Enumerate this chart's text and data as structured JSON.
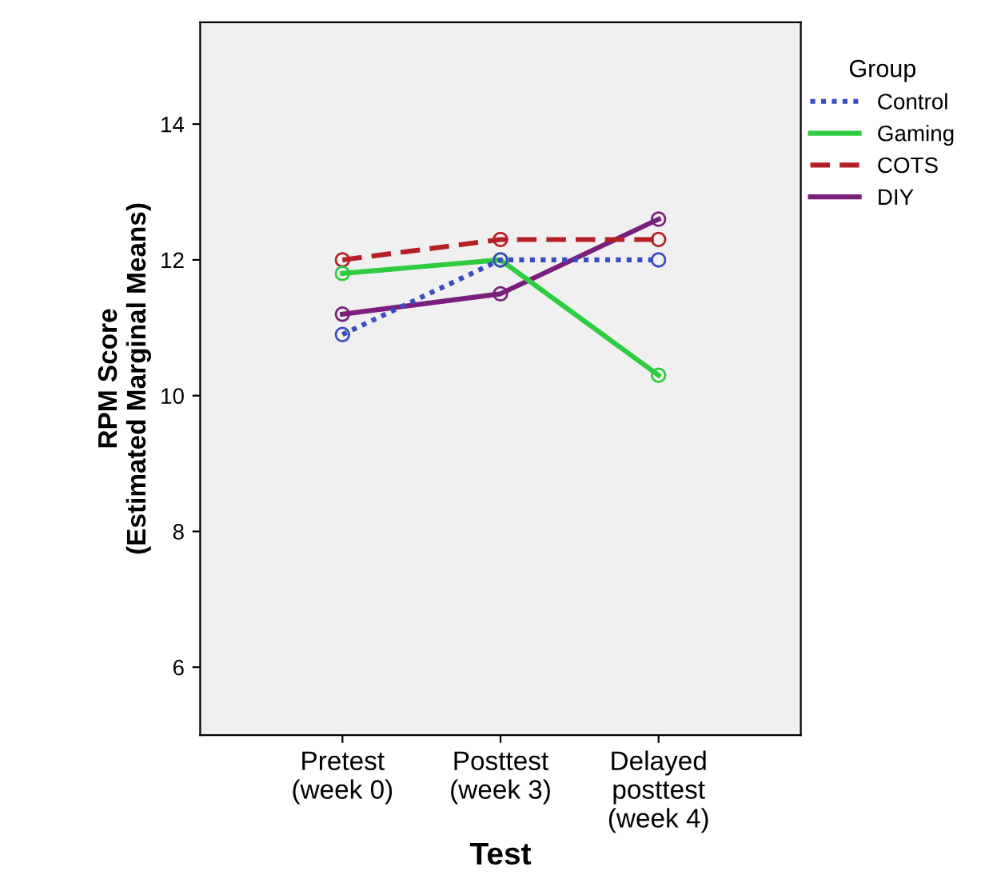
{
  "chart_data": {
    "type": "line",
    "xlabel": "Test",
    "ylabel": "RPM Score\n(Estimated Marginal Means)",
    "legend_title": "Group",
    "legend": "right",
    "categories": [
      "Pretest\n(week 0)",
      "Posttest\n(week 3)",
      "Delayed\nposttest\n(week 4)"
    ],
    "ylim": [
      5,
      15.5
    ],
    "yticks": [
      6,
      8,
      10,
      12,
      14
    ],
    "marker": "circle",
    "grid": false,
    "series": [
      {
        "name": "Control",
        "color": "#3b4cc0",
        "line_style": "dotted",
        "values": [
          10.9,
          12.0,
          12.0
        ]
      },
      {
        "name": "Gaming",
        "color": "#2ecc40",
        "line_style": "solid",
        "values": [
          11.8,
          12.0,
          10.3
        ]
      },
      {
        "name": "COTS",
        "color": "#b52025",
        "line_style": "dashed",
        "values": [
          12.0,
          12.3,
          12.3
        ]
      },
      {
        "name": "DIY",
        "color": "#7a1f7e",
        "line_style": "solid",
        "values": [
          11.2,
          11.5,
          12.6
        ]
      }
    ]
  }
}
